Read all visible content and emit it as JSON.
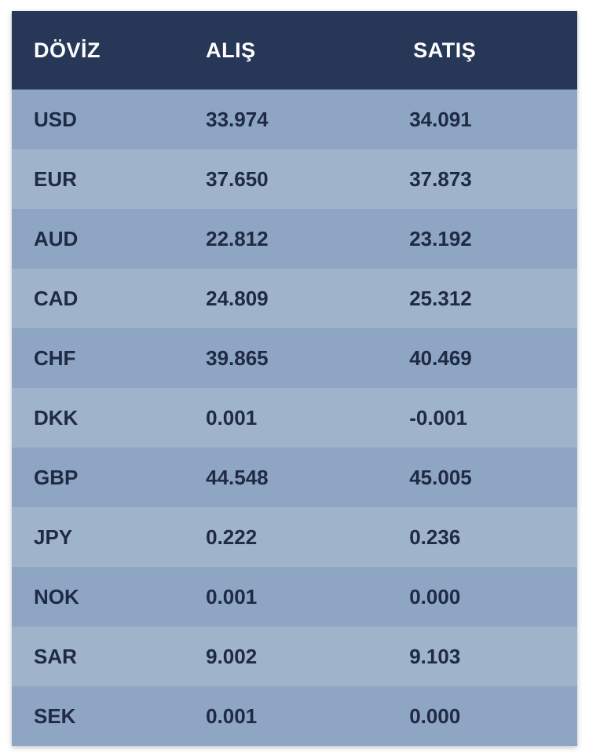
{
  "table": {
    "type": "table",
    "columns": [
      "DÖVİZ",
      "ALIŞ",
      "SATIŞ"
    ],
    "rows": [
      [
        "USD",
        "33.974",
        "34.091"
      ],
      [
        "EUR",
        "37.650",
        "37.873"
      ],
      [
        "AUD",
        "22.812",
        "23.192"
      ],
      [
        "CAD",
        "24.809",
        "25.312"
      ],
      [
        "CHF",
        "39.865",
        "40.469"
      ],
      [
        "DKK",
        "0.001",
        "-0.001"
      ],
      [
        "GBP",
        "44.548",
        "45.005"
      ],
      [
        "JPY",
        "0.222",
        "0.236"
      ],
      [
        "NOK",
        "0.001",
        "0.000"
      ],
      [
        "SAR",
        "9.002",
        "9.103"
      ],
      [
        "SEK",
        "0.001",
        "0.000"
      ]
    ],
    "header_bg": "#273758",
    "header_text_color": "#ffffff",
    "row_bg_even": "#8ea5c3",
    "row_bg_odd": "#9fb3cb",
    "row_text_color": "#1f2a44",
    "header_fontsize": 27,
    "row_fontsize": 26,
    "font_weight": 700
  }
}
